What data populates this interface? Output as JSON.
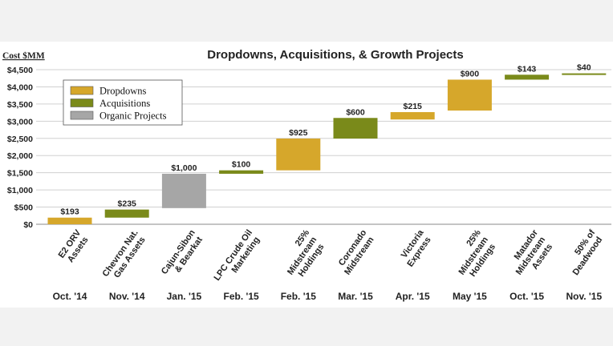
{
  "chart_data": {
    "type": "waterfall",
    "title": "Dropdowns, Acquisitions, & Growth Projects",
    "ylabel": "Cost $MM",
    "ylim": [
      0,
      4500
    ],
    "yticks": [
      "$0",
      "$500",
      "$1,000",
      "$1,500",
      "$2,000",
      "$2,500",
      "$3,000",
      "$3,500",
      "$4,000",
      "$4,500"
    ],
    "ytick_values": [
      0,
      500,
      1000,
      1500,
      2000,
      2500,
      3000,
      3500,
      4000,
      4500
    ],
    "grid": true,
    "legend_position": "top-left",
    "legend": [
      {
        "name": "Dropdowns",
        "color": "#d6a72b"
      },
      {
        "name": "Acquisitions",
        "color": "#7a8a1a"
      },
      {
        "name": "Organic Projects",
        "color": "#a6a6a6"
      }
    ],
    "bars": [
      {
        "category": "E2 ORV Assets",
        "lines": [
          "E2 ORV",
          "Assets"
        ],
        "date": "Oct. '14",
        "label": "$193",
        "start": 0,
        "end": 193,
        "kind": "Dropdowns",
        "color": "#d6a72b"
      },
      {
        "category": "Chevron Nat. Gas Assets",
        "lines": [
          "Chevron Nat.",
          "Gas Assets"
        ],
        "date": "Nov. '14",
        "label": "$235",
        "start": 193,
        "end": 428,
        "kind": "Acquisitions",
        "color": "#7a8a1a"
      },
      {
        "category": "Cajun-Sibon & Bearkat",
        "lines": [
          "Cajun-Sibon",
          "& Bearkat"
        ],
        "date": "Jan. '15",
        "label": "$1,000",
        "start": 470,
        "end": 1470,
        "kind": "Organic Projects",
        "color": "#a6a6a6"
      },
      {
        "category": "LPC Crude Oil Marketing",
        "lines": [
          "LPC Crude Oil",
          "Marketing"
        ],
        "date": "Feb. '15",
        "label": "$100",
        "start": 1470,
        "end": 1570,
        "kind": "Acquisitions",
        "color": "#7a8a1a"
      },
      {
        "category": "25% Midstream Holdings",
        "lines": [
          "25%",
          "Midstream",
          "Holdings"
        ],
        "date": "Feb. '15",
        "label": "$925",
        "start": 1570,
        "end": 2495,
        "kind": "Dropdowns",
        "color": "#d6a72b"
      },
      {
        "category": "Coronado Midstream",
        "lines": [
          "Coronado",
          "Midstream"
        ],
        "date": "Mar. '15",
        "label": "$600",
        "start": 2495,
        "end": 3095,
        "kind": "Acquisitions",
        "color": "#7a8a1a"
      },
      {
        "category": "Victoria Express",
        "lines": [
          "Victoria",
          "Express"
        ],
        "date": "Apr. '15",
        "label": "$215",
        "start": 3050,
        "end": 3265,
        "kind": "Dropdowns",
        "color": "#d6a72b"
      },
      {
        "category": "25% Midstream Holdings",
        "lines": [
          "25%",
          "Midstream",
          "Holdings"
        ],
        "date": "May '15",
        "label": "$900",
        "start": 3310,
        "end": 4210,
        "kind": "Dropdowns",
        "color": "#d6a72b"
      },
      {
        "category": "Matador Midstream Assets",
        "lines": [
          "Matador",
          "Midstream",
          "Assets"
        ],
        "date": "Oct. '15",
        "label": "$143",
        "start": 4210,
        "end": 4353,
        "kind": "Acquisitions",
        "color": "#7a8a1a"
      },
      {
        "category": "50% of Deadwood",
        "lines": [
          "50% of",
          "Deadwood"
        ],
        "date": "Nov. '15",
        "label": "$40",
        "start": 4353,
        "end": 4393,
        "kind": "Acquisitions",
        "color": "#7a8a1a"
      }
    ]
  }
}
